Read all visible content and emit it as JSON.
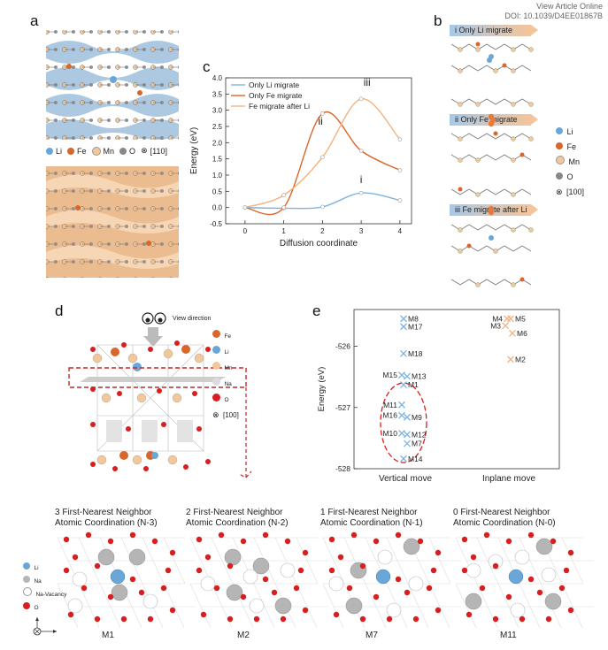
{
  "header": {
    "line1": "View Article Online",
    "line2": "DOI: 10.1039/D4EE01867B"
  },
  "panels": {
    "a": "a",
    "b": "b",
    "c": "c",
    "d": "d",
    "e": "e"
  },
  "legend_a": {
    "li": "Li",
    "fe": "Fe",
    "mn": "Mn",
    "o": "O",
    "dir": "[110]"
  },
  "legend_b": {
    "li": "Li",
    "fe": "Fe",
    "mn": "Mn",
    "o": "O",
    "dir": "[100]"
  },
  "banners": [
    "i  Only Li migrate",
    "ii  Only Fe migrate",
    "iii  Fe migrate after Li"
  ],
  "legend_d": {
    "fe": "Fe",
    "li": "Li",
    "mn": "Mn",
    "na": "Na",
    "o": "O",
    "dir": "[100]",
    "view": "View direction"
  },
  "legend_bottom": {
    "li": "Li",
    "na": "Na",
    "vac": "Na-Vacancy",
    "o": "O"
  },
  "coordination": [
    {
      "title1": "3 First-Nearest Neighbor",
      "title2": "Atomic Coordination (N-3)",
      "label": "M1"
    },
    {
      "title1": "2 First-Nearest Neighbor",
      "title2": "Atomic Coordination (N-2)",
      "label": "M2"
    },
    {
      "title1": "1 First-Nearest Neighbor",
      "title2": "Atomic Coordination (N-1)",
      "label": "M7"
    },
    {
      "title1": "0 First-Nearest Neighbor",
      "title2": "Atomic Coordination (N-0)",
      "label": "M11"
    }
  ],
  "colors": {
    "li": "#6aa7d8",
    "fe": "#d9662a",
    "mn": "#f2c79a",
    "o": "#d81e1e",
    "na": "#b5b5b5",
    "grey": "#888888",
    "blueline": "#7fb3e0",
    "redline": "#d9662a",
    "orangeline": "#f5b27a"
  },
  "chart_data": [
    {
      "type": "line",
      "title": "",
      "xlabel": "Diffusion coordinate",
      "ylabel": "Energy (eV)",
      "xlim": [
        -0.5,
        4.3
      ],
      "ylim": [
        -0.5,
        4.0
      ],
      "xticks": [
        0,
        1,
        2,
        3,
        4
      ],
      "yticks": [
        -0.5,
        0.0,
        0.5,
        1.0,
        1.5,
        2.0,
        2.5,
        3.0,
        3.5,
        4.0
      ],
      "x": [
        0,
        1,
        2,
        3,
        4
      ],
      "series": [
        {
          "name": "Only Li migrate",
          "values": [
            0.0,
            -0.02,
            0.02,
            0.45,
            0.22
          ],
          "color": "#7fb3e0"
        },
        {
          "name": "Only Fe migrate",
          "values": [
            0.0,
            0.0,
            2.9,
            1.75,
            1.15
          ],
          "color": "#d9662a"
        },
        {
          "name": "Fe migrate after Li",
          "values": [
            0.0,
            0.38,
            1.55,
            3.35,
            2.1
          ],
          "color": "#f5b27a"
        }
      ],
      "annotations": [
        {
          "text": "i",
          "x": 3.0,
          "y": 0.75
        },
        {
          "text": "ii",
          "x": 1.95,
          "y": 2.55
        },
        {
          "text": "iii",
          "x": 3.15,
          "y": 3.75
        }
      ],
      "legend": "top-left"
    },
    {
      "type": "scatter",
      "title": "",
      "xlabel": "",
      "ylabel": "Energy (eV)",
      "categories": [
        "Vertical move",
        "Inplane move"
      ],
      "ylim": [
        -528,
        -525.4
      ],
      "yticks": [
        -528,
        -527,
        -526
      ],
      "points": [
        {
          "label": "M8",
          "category": "Vertical move",
          "y": -525.55,
          "color": "#7fb3e0"
        },
        {
          "label": "M17",
          "category": "Vertical move",
          "y": -525.68,
          "color": "#7fb3e0"
        },
        {
          "label": "M18",
          "category": "Vertical move",
          "y": -526.12,
          "color": "#7fb3e0"
        },
        {
          "label": "M15",
          "category": "Vertical move",
          "y": -526.5,
          "color": "#7fb3e0"
        },
        {
          "label": "M13",
          "category": "Vertical move",
          "y": -526.52,
          "color": "#7fb3e0"
        },
        {
          "label": "M1",
          "category": "Vertical move",
          "y": -526.6,
          "color": "#7fb3e0"
        },
        {
          "label": "M11",
          "category": "Vertical move",
          "y": -527.0,
          "color": "#7fb3e0"
        },
        {
          "label": "M16",
          "category": "Vertical move",
          "y": -527.1,
          "color": "#7fb3e0"
        },
        {
          "label": "M9",
          "category": "Vertical move",
          "y": -527.13,
          "color": "#7fb3e0"
        },
        {
          "label": "M10",
          "category": "Vertical move",
          "y": -527.45,
          "color": "#7fb3e0"
        },
        {
          "label": "M12",
          "category": "Vertical move",
          "y": -527.47,
          "color": "#7fb3e0"
        },
        {
          "label": "M7",
          "category": "Vertical move",
          "y": -527.56,
          "color": "#7fb3e0"
        },
        {
          "label": "M14",
          "category": "Vertical move",
          "y": -527.78,
          "color": "#7fb3e0"
        },
        {
          "label": "M4",
          "category": "Inplane move",
          "y": -525.55,
          "color": "#f5b27a"
        },
        {
          "label": "M5",
          "category": "Inplane move",
          "y": -525.55,
          "color": "#f5b27a"
        },
        {
          "label": "M3",
          "category": "Inplane move",
          "y": -525.65,
          "color": "#f5b27a"
        },
        {
          "label": "M6",
          "category": "Inplane move",
          "y": -525.73,
          "color": "#f5b27a"
        },
        {
          "label": "M2",
          "category": "Inplane move",
          "y": -526.2,
          "color": "#f5b27a"
        }
      ]
    }
  ]
}
